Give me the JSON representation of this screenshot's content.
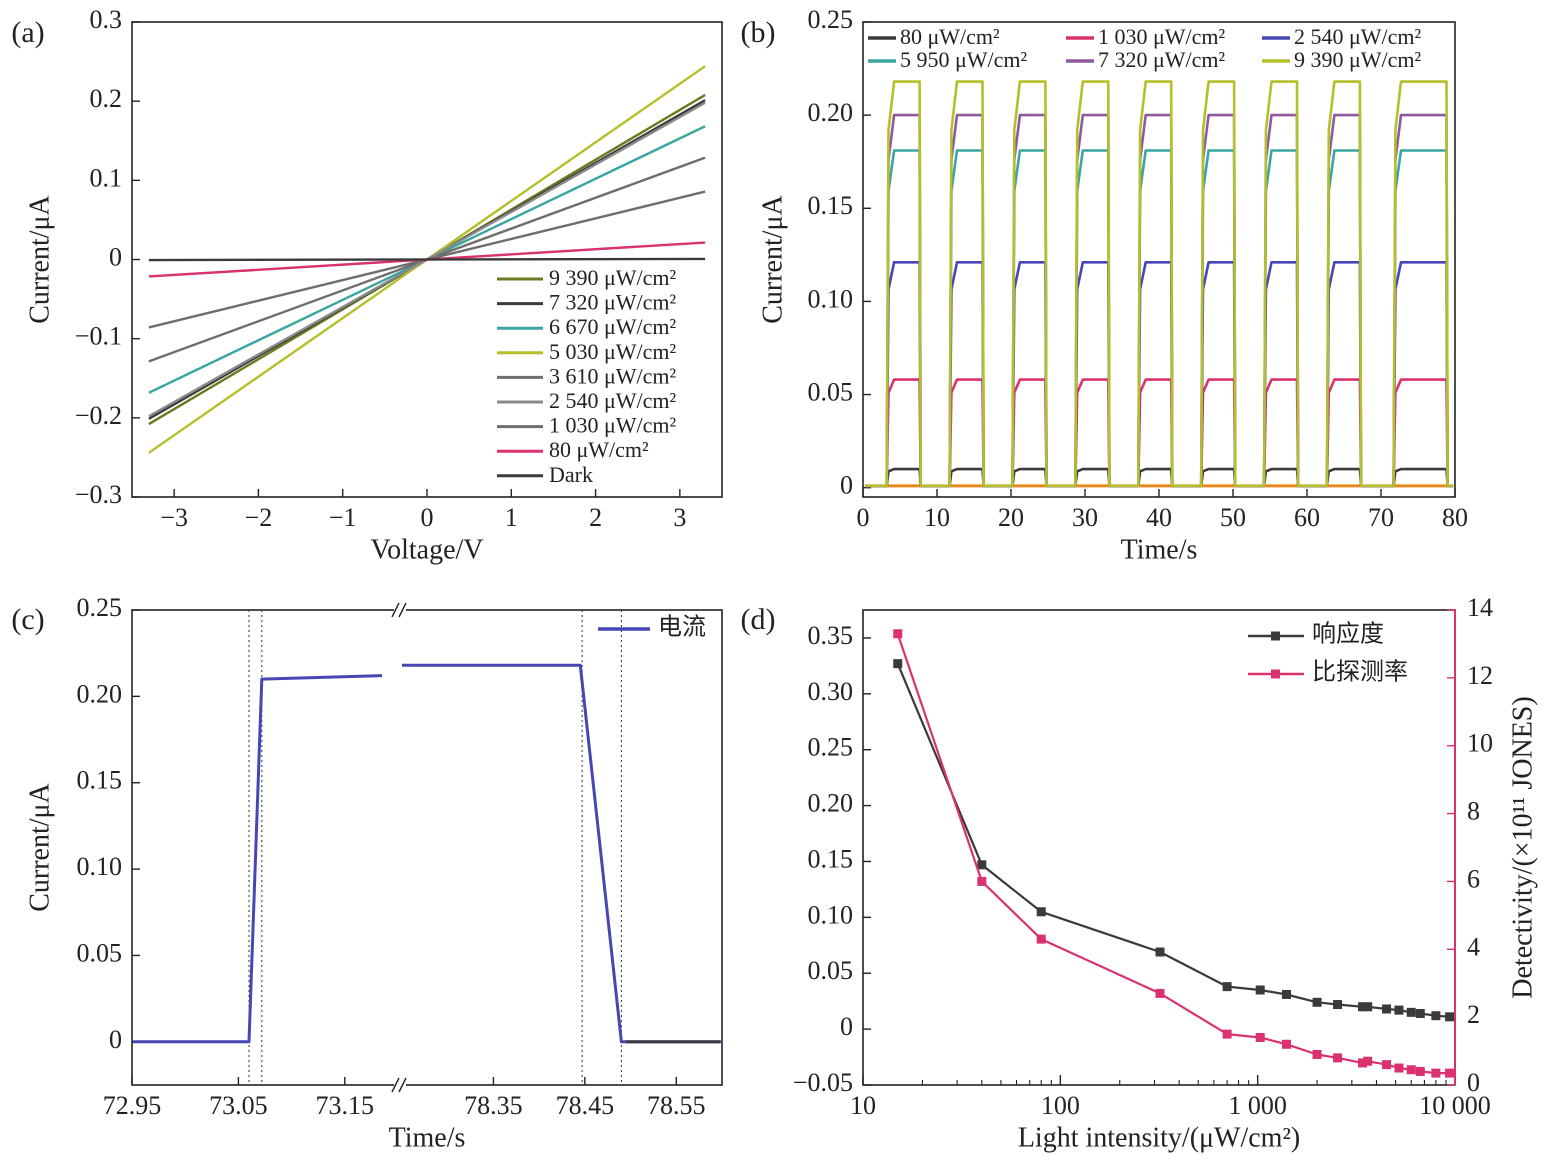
{
  "panel_labels": [
    "(a)",
    "(b)",
    "(c)",
    "(d)"
  ],
  "colors": {
    "dark": "#3a3a3a",
    "gray": "#6e6e6e",
    "red": "#d9326e",
    "blue": "#4646b4",
    "teal": "#3aa6a0",
    "olive": "#6b7a1e",
    "yellow_green": "#b5bf2a",
    "purple": "#8e5a9e",
    "orange": "#e8861c"
  },
  "chart_data": [
    {
      "panel": "(a)",
      "type": "line",
      "xlabel": "Voltage/V",
      "ylabel": "Current/μA",
      "xlim": [
        -3.5,
        3.5
      ],
      "ylim": [
        -0.3,
        0.3
      ],
      "xticks": [
        -3,
        -2,
        -1,
        0,
        1,
        2,
        3
      ],
      "yticks": [
        0.3,
        0.2,
        0.1,
        0,
        -0.1,
        -0.2,
        -0.3
      ],
      "ytick_labels": [
        "0.3",
        "0.2",
        "0.1",
        "0",
        "−0.1",
        "−0.2",
        "−0.3"
      ],
      "xtick_labels": [
        "−3",
        "−2",
        "−1",
        "0",
        "1",
        "2",
        "3"
      ],
      "x_range": [
        -3.3,
        3.3
      ],
      "legend_position": "bottom-right",
      "series": [
        {
          "name": "9 390 μW/cm²",
          "slope": 0.063,
          "color": "#6b7a1e"
        },
        {
          "name": "7 320 μW/cm²",
          "slope": 0.061,
          "color": "#3a3a3a"
        },
        {
          "name": "6 670 μW/cm²",
          "slope": 0.051,
          "color": "#3aa6a0"
        },
        {
          "name": "5 030 μW/cm²",
          "slope": 0.074,
          "color": "#b5bf2a"
        },
        {
          "name": "3 610 μW/cm²",
          "slope": 0.039,
          "color": "#6e6e6e"
        },
        {
          "name": "2 540 μW/cm²",
          "slope": 0.06,
          "color": "#8a8a8a"
        },
        {
          "name": "1 030 μW/cm²",
          "slope": 0.026,
          "color": "#6e6e6e"
        },
        {
          "name": "80 μW/cm²",
          "slope": 0.0065,
          "color": "#d9326e"
        },
        {
          "name": "Dark",
          "slope": 0.0002,
          "color": "#3a3a3a"
        }
      ]
    },
    {
      "panel": "(b)",
      "type": "line",
      "xlabel": "Time/s",
      "ylabel": "Current/μA",
      "xlim": [
        0,
        80
      ],
      "ylim": [
        -0.005,
        0.25
      ],
      "xticks": [
        0,
        10,
        20,
        30,
        40,
        50,
        60,
        70,
        80
      ],
      "yticks": [
        0,
        0.05,
        0.1,
        0.15,
        0.2,
        0.25
      ],
      "ytick_labels": [
        "0",
        "0.05",
        "0.10",
        "0.15",
        "0.20",
        "0.25"
      ],
      "legend_position": "top",
      "on_intervals": [
        [
          3.2,
          7.8
        ],
        [
          11.7,
          16.3
        ],
        [
          20.2,
          24.8
        ],
        [
          28.7,
          33.3
        ],
        [
          37.2,
          41.8
        ],
        [
          45.7,
          50.3
        ],
        [
          54.2,
          58.8
        ],
        [
          62.7,
          67.3
        ],
        [
          71.7,
          79.0
        ]
      ],
      "series": [
        {
          "name": "80 μW/cm²",
          "on_value": 0.01,
          "color": "#3a3a3a"
        },
        {
          "name": "1 030 μW/cm²",
          "on_value": 0.058,
          "color": "#d9326e"
        },
        {
          "name": "2 540 μW/cm²",
          "on_value": 0.121,
          "color": "#4646b4"
        },
        {
          "name": "5 950 μW/cm²",
          "on_value": 0.181,
          "color": "#3aa6a0"
        },
        {
          "name": "7 320 μW/cm²",
          "on_value": 0.2,
          "color": "#8e5a9e"
        },
        {
          "name": "9 390 μW/cm²",
          "on_value": 0.218,
          "color": "#b5bf2a"
        }
      ]
    },
    {
      "panel": "(c)",
      "type": "line",
      "xlabel": "Time/s",
      "ylabel": "Current/μA",
      "ylim": [
        -0.025,
        0.25
      ],
      "yticks": [
        0,
        0.05,
        0.1,
        0.15,
        0.2,
        0.25
      ],
      "ytick_labels": [
        "0",
        "0.05",
        "0.10",
        "0.15",
        "0.20",
        "0.25"
      ],
      "x_segments": [
        {
          "xlim": [
            72.95,
            73.2
          ],
          "xticks": [
            72.95,
            73.05,
            73.15
          ],
          "xtick_labels": [
            "72.95",
            "73.05",
            "73.15"
          ]
        },
        {
          "xlim": [
            78.25,
            78.6
          ],
          "xticks": [
            78.35,
            78.45,
            78.55
          ],
          "xtick_labels": [
            "78.35",
            "78.45",
            "78.55"
          ]
        }
      ],
      "legend_position": "top-right",
      "series": [
        {
          "name": "电流",
          "color": "#4646b4",
          "points_seg1": [
            [
              72.9,
              0
            ],
            [
              73.06,
              0
            ],
            [
              73.072,
              0.21
            ],
            [
              73.185,
              0.212
            ]
          ],
          "points_seg2": [
            [
              78.25,
              0.218
            ],
            [
              78.445,
              0.218
            ],
            [
              78.49,
              0.0
            ],
            [
              78.6,
              0
            ]
          ]
        }
      ],
      "dotted_lines": [
        73.06,
        73.072,
        78.447,
        78.49
      ]
    },
    {
      "panel": "(d)",
      "type": "line",
      "xlabel": "Light intensity/(μW/cm²)",
      "ylabel_left": "",
      "ylabel_right": "Detectivity/(×10¹¹ JONES)",
      "x_scale": "log",
      "xlim": [
        10,
        10000
      ],
      "xticks": [
        10,
        100,
        1000,
        10000
      ],
      "xtick_labels": [
        "10",
        "100",
        "1 000",
        "10 000"
      ],
      "ylim_left": [
        -0.05,
        0.375
      ],
      "yticks_left": [
        -0.05,
        0,
        0.05,
        0.1,
        0.15,
        0.2,
        0.25,
        0.3,
        0.35
      ],
      "ytick_labels_left": [
        "−0.05",
        "0",
        "0.05",
        "0.10",
        "0.15",
        "0.20",
        "0.25",
        "0.30",
        "0.35"
      ],
      "ylim_right": [
        0,
        14
      ],
      "yticks_right": [
        0,
        2,
        4,
        6,
        8,
        10,
        12,
        14
      ],
      "legend_position": "top-right",
      "x": [
        15,
        40,
        80,
        320,
        700,
        1030,
        1400,
        2000,
        2540,
        3400,
        3610,
        4500,
        5200,
        6000,
        6670,
        8000,
        9390
      ],
      "series": [
        {
          "name": "响应度",
          "axis": "left",
          "color": "#3a3a3a",
          "values": [
            0.327,
            0.147,
            0.105,
            0.069,
            0.038,
            0.035,
            0.031,
            0.024,
            0.022,
            0.02,
            0.02,
            0.018,
            0.017,
            0.015,
            0.014,
            0.012,
            0.011
          ]
        },
        {
          "name": "比探测率",
          "axis": "right",
          "color": "#d9326e",
          "values": [
            13.3,
            6.0,
            4.3,
            2.7,
            1.5,
            1.4,
            1.2,
            0.9,
            0.8,
            0.65,
            0.7,
            0.6,
            0.5,
            0.45,
            0.4,
            0.35,
            0.35
          ]
        }
      ]
    }
  ]
}
